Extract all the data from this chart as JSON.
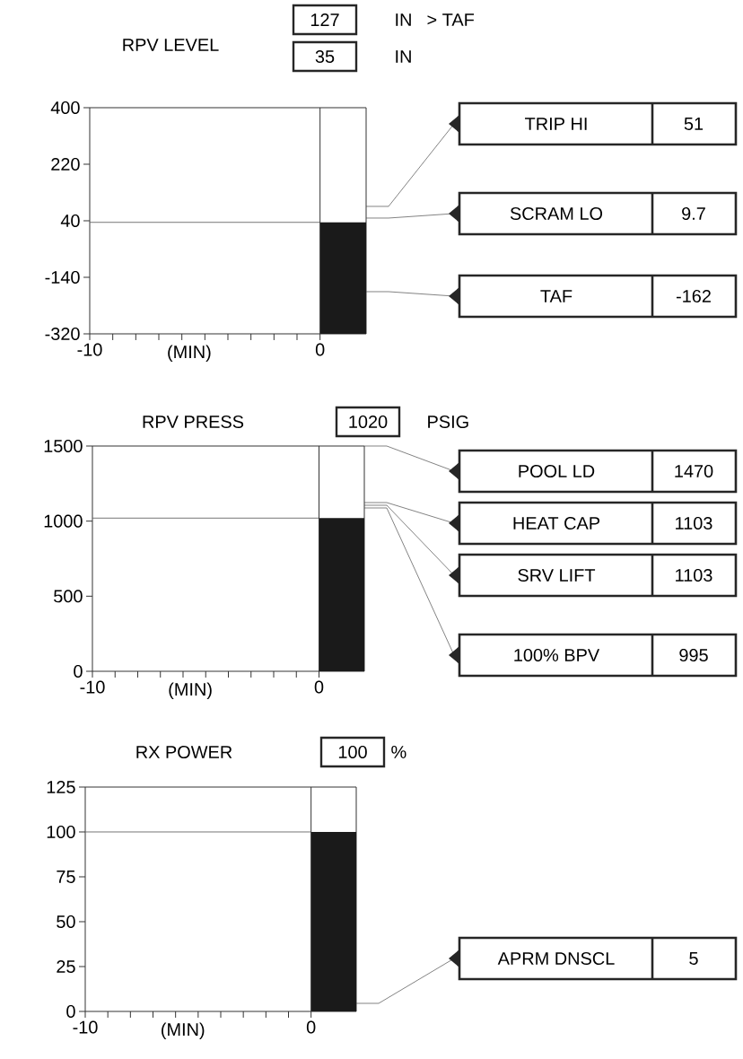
{
  "chart_data": [
    {
      "type": "bar",
      "title": "RPV LEVEL",
      "xlabel": "(MIN)",
      "annotations": [
        "127",
        "IN",
        "> TAF",
        "35",
        "IN",
        "TRIP HI",
        "51",
        "SCRAM LO",
        "9.7",
        "TAF",
        "-162"
      ],
      "xlim": [
        -10,
        2
      ],
      "ylim": [
        -320,
        400
      ],
      "xticks": [
        -10,
        {
          "value": -9,
          "label": null
        },
        {
          "value": -8,
          "label": null
        },
        {
          "value": -7,
          "label": null
        },
        {
          "value": -6,
          "label": null
        },
        {
          "value": -5,
          "label": null
        },
        {
          "value": -4,
          "label": null
        },
        {
          "value": -3,
          "label": null
        },
        {
          "value": -2,
          "label": null
        },
        {
          "value": -1,
          "label": null
        },
        0
      ],
      "yticks": [
        400,
        220,
        40,
        -140,
        -320
      ],
      "series": [
        {
          "type": "line",
          "color": "#666666",
          "x": [
            -10,
            0
          ],
          "values": [
            35,
            35
          ]
        },
        {
          "type": "bar",
          "color": "#1a1a1a",
          "x": [
            1
          ],
          "base": [
            -320
          ],
          "values": [
            355
          ]
        }
      ],
      "ref_lines": [
        {
          "axis": "x",
          "value": 0
        }
      ]
    },
    {
      "type": "bar",
      "title": "RPV PRESS",
      "xlabel": "(MIN)",
      "annotations": [
        "1020",
        "PSIG",
        "POOL LD",
        "1470",
        "HEAT CAP",
        "1103",
        "SRV LIFT",
        "1103",
        "100% BPV",
        "995"
      ],
      "xlim": [
        -10,
        2
      ],
      "ylim": [
        0,
        1500
      ],
      "xticks": [
        -10,
        {
          "value": -9,
          "label": null
        },
        {
          "value": -8,
          "label": null
        },
        {
          "value": -7,
          "label": null
        },
        {
          "value": -6,
          "label": null
        },
        {
          "value": -5,
          "label": null
        },
        {
          "value": -4,
          "label": null
        },
        {
          "value": -3,
          "label": null
        },
        {
          "value": -2,
          "label": null
        },
        {
          "value": -1,
          "label": null
        },
        0
      ],
      "yticks": [
        0,
        500,
        1000,
        1500
      ],
      "series": [
        {
          "type": "line",
          "color": "#666666",
          "x": [
            -10,
            0
          ],
          "values": [
            1020,
            1020
          ]
        },
        {
          "type": "bar",
          "color": "#1a1a1a",
          "x": [
            1
          ],
          "values": [
            1020
          ]
        }
      ],
      "ref_lines": [
        {
          "axis": "x",
          "value": 0
        }
      ]
    },
    {
      "type": "bar",
      "title": "RX POWER",
      "xlabel": "(MIN)",
      "annotations": [
        "100",
        "%",
        "APRM DNSCL",
        "5"
      ],
      "xlim": [
        -10,
        2
      ],
      "ylim": [
        0,
        125
      ],
      "xticks": [
        -10,
        {
          "value": -9,
          "label": null
        },
        {
          "value": -8,
          "label": null
        },
        {
          "value": -7,
          "label": null
        },
        {
          "value": -6,
          "label": null
        },
        {
          "value": -5,
          "label": null
        },
        {
          "value": -4,
          "label": null
        },
        {
          "value": -3,
          "label": null
        },
        {
          "value": -2,
          "label": null
        },
        {
          "value": -1,
          "label": null
        },
        0
      ],
      "yticks": [
        0,
        25,
        50,
        75,
        100,
        125
      ],
      "series": [
        {
          "type": "line",
          "color": "#666666",
          "x": [
            -10,
            0
          ],
          "values": [
            100,
            100
          ]
        },
        {
          "type": "bar",
          "color": "#1a1a1a",
          "x": [
            1
          ],
          "values": [
            100
          ]
        }
      ],
      "ref_lines": [
        {
          "axis": "x",
          "value": 0
        }
      ]
    }
  ]
}
